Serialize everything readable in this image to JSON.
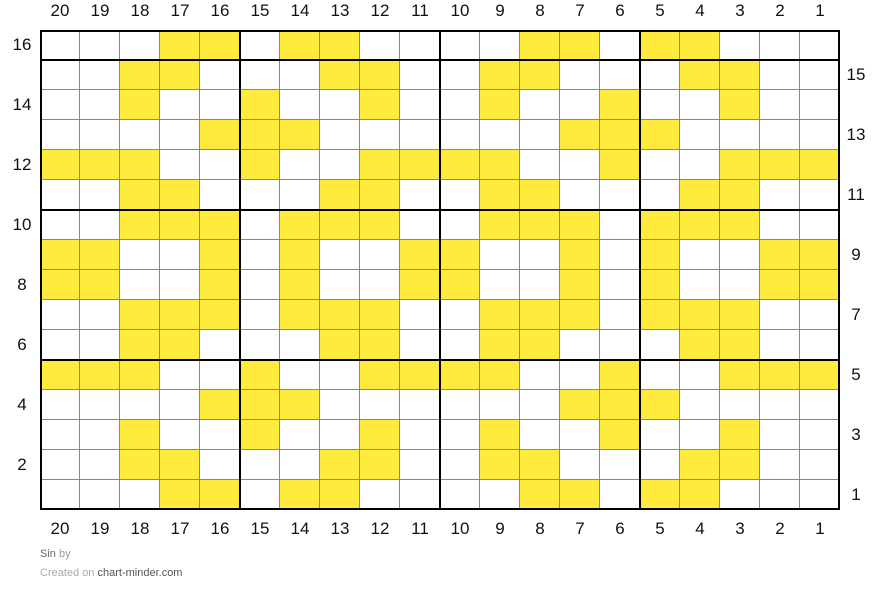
{
  "chart": {
    "columns": 20,
    "rows": 16,
    "fill_color": "#FFEB3B",
    "empty_color": "#FFFFFF",
    "filled_columns_by_row": {
      "16": [
        17,
        16,
        14,
        13,
        8,
        7,
        5,
        4
      ],
      "15": [
        18,
        17,
        13,
        12,
        9,
        8,
        4,
        3
      ],
      "14": [
        18,
        15,
        12,
        9,
        6,
        3
      ],
      "13": [
        16,
        15,
        14,
        7,
        6,
        5
      ],
      "12": [
        20,
        19,
        18,
        15,
        12,
        11,
        10,
        9,
        6,
        3,
        2,
        1
      ],
      "11": [
        18,
        17,
        13,
        12,
        9,
        8,
        4,
        3
      ],
      "10": [
        18,
        17,
        16,
        14,
        13,
        12,
        9,
        8,
        7,
        5,
        4,
        3
      ],
      "9": [
        20,
        19,
        16,
        14,
        11,
        10,
        7,
        5,
        2,
        1
      ],
      "8": [
        20,
        19,
        16,
        14,
        11,
        10,
        7,
        5,
        2,
        1
      ],
      "7": [
        18,
        17,
        16,
        14,
        13,
        12,
        9,
        8,
        7,
        5,
        4,
        3
      ],
      "6": [
        18,
        17,
        13,
        12,
        9,
        8,
        4,
        3
      ],
      "5": [
        20,
        19,
        18,
        15,
        12,
        11,
        10,
        9,
        6,
        3,
        2,
        1
      ],
      "4": [
        16,
        15,
        14,
        7,
        6,
        5
      ],
      "3": [
        18,
        15,
        12,
        9,
        6,
        3
      ],
      "2": [
        18,
        17,
        13,
        12,
        9,
        8,
        4,
        3
      ],
      "1": [
        17,
        16,
        14,
        13,
        8,
        7,
        5,
        4
      ]
    }
  },
  "footer": {
    "title": "Sin",
    "by": "by",
    "created_on": "Created on",
    "site": "chart-minder.com"
  }
}
